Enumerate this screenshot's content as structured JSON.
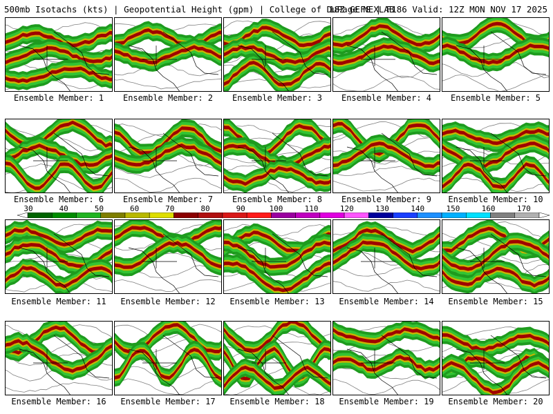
{
  "header": {
    "left": "500mb Isotachs (kts) | Geopotential Height (gpm) | College of DuPage NEXLAB",
    "right": "18Z GEFS | F186 Valid: 12Z MON NOV 17 2025"
  },
  "colorbar": {
    "labels": [
      "30",
      "40",
      "50",
      "60",
      "70",
      "80",
      "90",
      "100",
      "110",
      "120",
      "130",
      "140",
      "150",
      "160",
      "170"
    ],
    "colors": [
      "#006400",
      "#008c00",
      "#22b422",
      "#7f7f00",
      "#b8b800",
      "#dede00",
      "#8b0000",
      "#b01010",
      "#d81818",
      "#ff1a1a",
      "#9a00a0",
      "#c000c0",
      "#e000e0",
      "#ff55ff",
      "#00009c",
      "#1a40ff",
      "#1e90ff",
      "#00b0ff",
      "#00e0ff",
      "#808080",
      "#b0b0b0"
    ]
  },
  "members": [
    {
      "label": "Ensemble Member: 1"
    },
    {
      "label": "Ensemble Member: 2"
    },
    {
      "label": "Ensemble Member: 3"
    },
    {
      "label": "Ensemble Member: 4"
    },
    {
      "label": "Ensemble Member: 5"
    },
    {
      "label": "Ensemble Member: 6"
    },
    {
      "label": "Ensemble Member: 7"
    },
    {
      "label": "Ensemble Member: 8"
    },
    {
      "label": "Ensemble Member: 9"
    },
    {
      "label": "Ensemble Member: 10"
    },
    {
      "label": "Ensemble Member: 11"
    },
    {
      "label": "Ensemble Member: 12"
    },
    {
      "label": "Ensemble Member: 13"
    },
    {
      "label": "Ensemble Member: 14"
    },
    {
      "label": "Ensemble Member: 15"
    },
    {
      "label": "Ensemble Member: 16"
    },
    {
      "label": "Ensemble Member: 17"
    },
    {
      "label": "Ensemble Member: 18"
    },
    {
      "label": "Ensemble Member: 19"
    },
    {
      "label": "Ensemble Member: 20"
    }
  ],
  "style": {
    "jet_colors": [
      "#1e9b1e",
      "#33c433",
      "#c8b400",
      "#a00000"
    ],
    "height_contour_color": "#808080",
    "coastline_color": "#000000"
  }
}
